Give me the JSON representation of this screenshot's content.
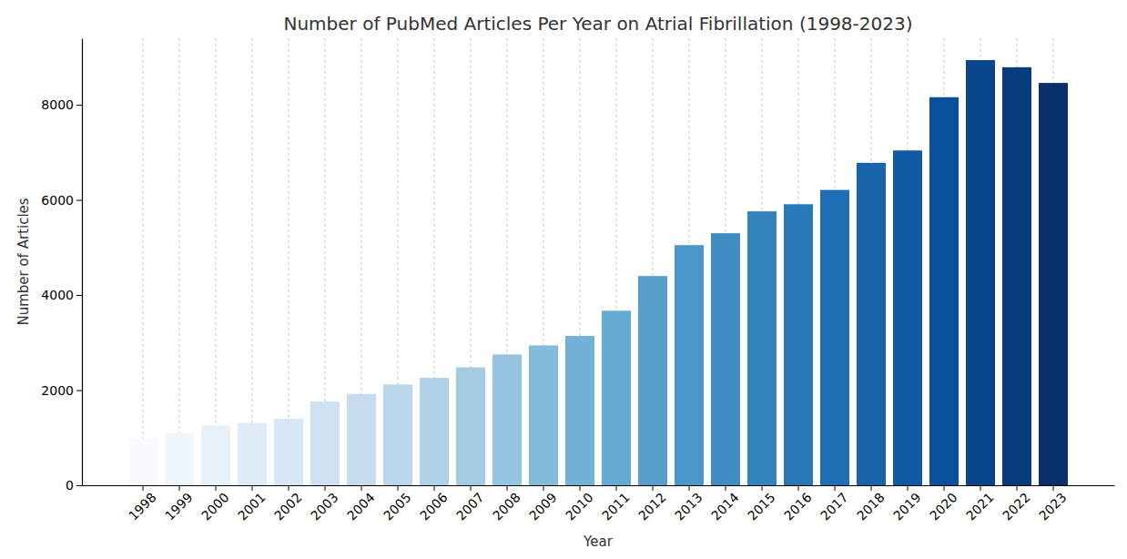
{
  "chart_data": {
    "type": "bar",
    "title": "Number of PubMed Articles Per Year on Atrial Fibrillation (1998-2023)",
    "x_label": "Year",
    "y_label": "Number of Articles",
    "categories": [
      "1998",
      "1999",
      "2000",
      "2001",
      "2002",
      "2003",
      "2004",
      "2005",
      "2006",
      "2007",
      "2008",
      "2009",
      "2010",
      "2011",
      "2012",
      "2013",
      "2014",
      "2015",
      "2016",
      "2017",
      "2018",
      "2019",
      "2020",
      "2021",
      "2022",
      "2023"
    ],
    "values": [
      1000,
      1090,
      1260,
      1310,
      1400,
      1760,
      1920,
      2120,
      2260,
      2480,
      2750,
      2940,
      3140,
      3670,
      4400,
      5050,
      5300,
      5760,
      5910,
      6210,
      6780,
      7040,
      8160,
      8940,
      8790,
      8460
    ],
    "colors": [
      "#f7fbff",
      "#eff6fc",
      "#e7f1fa",
      "#dfecf7",
      "#d7e7f5",
      "#d0e1f2",
      "#c8dcf0",
      "#bcd7ec",
      "#b0d1e7",
      "#a3cce3",
      "#94c4df",
      "#83bbdb",
      "#73b2d8",
      "#64aad3",
      "#57a0ce",
      "#4a98c9",
      "#3e8ec4",
      "#3383bc",
      "#2979b9",
      "#1f6eb3",
      "#1764ab",
      "#0f5aa3",
      "#08509a",
      "#08458a",
      "#083b7b",
      "#08306b"
    ],
    "ylim": [
      0,
      9400
    ],
    "yticks": [
      0,
      2000,
      4000,
      6000,
      8000
    ],
    "grid": "x"
  }
}
